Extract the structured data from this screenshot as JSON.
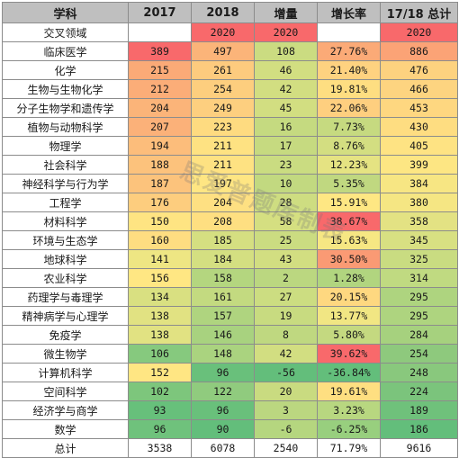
{
  "headers": [
    "学科",
    "2017",
    "2018",
    "增量",
    "增长率",
    "17/18 总计"
  ],
  "rows": [
    {
      "name": "交叉领域",
      "v2017": "",
      "v2018": "2020",
      "inc": "2020",
      "rate": "",
      "total": "2020"
    },
    {
      "name": "临床医学",
      "v2017": "389",
      "v2018": "497",
      "inc": "108",
      "rate": "27.76%",
      "total": "886"
    },
    {
      "name": "化学",
      "v2017": "215",
      "v2018": "261",
      "inc": "46",
      "rate": "21.40%",
      "total": "476"
    },
    {
      "name": "生物与生物化学",
      "v2017": "212",
      "v2018": "254",
      "inc": "42",
      "rate": "19.81%",
      "total": "466"
    },
    {
      "name": "分子生物学和遗传学",
      "v2017": "204",
      "v2018": "249",
      "inc": "45",
      "rate": "22.06%",
      "total": "453"
    },
    {
      "name": "植物与动物科学",
      "v2017": "207",
      "v2018": "223",
      "inc": "16",
      "rate": "7.73%",
      "total": "430"
    },
    {
      "name": "物理学",
      "v2017": "194",
      "v2018": "211",
      "inc": "17",
      "rate": "8.76%",
      "total": "405"
    },
    {
      "name": "社会科学",
      "v2017": "188",
      "v2018": "211",
      "inc": "23",
      "rate": "12.23%",
      "total": "399"
    },
    {
      "name": "神经科学与行为学",
      "v2017": "187",
      "v2018": "197",
      "inc": "10",
      "rate": "5.35%",
      "total": "384"
    },
    {
      "name": "工程学",
      "v2017": "176",
      "v2018": "204",
      "inc": "28",
      "rate": "15.91%",
      "total": "380"
    },
    {
      "name": "材料科学",
      "v2017": "150",
      "v2018": "208",
      "inc": "58",
      "rate": "38.67%",
      "total": "358"
    },
    {
      "name": "环境与生态学",
      "v2017": "160",
      "v2018": "185",
      "inc": "25",
      "rate": "15.63%",
      "total": "345"
    },
    {
      "name": "地球科学",
      "v2017": "141",
      "v2018": "184",
      "inc": "43",
      "rate": "30.50%",
      "total": "325"
    },
    {
      "name": "农业科学",
      "v2017": "156",
      "v2018": "158",
      "inc": "2",
      "rate": "1.28%",
      "total": "314"
    },
    {
      "name": "药理学与毒理学",
      "v2017": "134",
      "v2018": "161",
      "inc": "27",
      "rate": "20.15%",
      "total": "295"
    },
    {
      "name": "精神病学与心理学",
      "v2017": "138",
      "v2018": "157",
      "inc": "19",
      "rate": "13.77%",
      "total": "295"
    },
    {
      "name": "免疫学",
      "v2017": "138",
      "v2018": "146",
      "inc": "8",
      "rate": "5.80%",
      "total": "284"
    },
    {
      "name": "微生物学",
      "v2017": "106",
      "v2018": "148",
      "inc": "42",
      "rate": "39.62%",
      "total": "254"
    },
    {
      "name": "计算机科学",
      "v2017": "152",
      "v2018": "96",
      "inc": "-56",
      "rate": "-36.84%",
      "total": "248"
    },
    {
      "name": "空间科学",
      "v2017": "102",
      "v2018": "122",
      "inc": "20",
      "rate": "19.61%",
      "total": "224"
    },
    {
      "name": "经济学与商学",
      "v2017": "93",
      "v2018": "96",
      "inc": "3",
      "rate": "3.23%",
      "total": "189"
    },
    {
      "name": "数学",
      "v2017": "96",
      "v2018": "90",
      "inc": "-6",
      "rate": "-6.25%",
      "total": "186"
    },
    {
      "name": "总计",
      "v2017": "3538",
      "v2018": "6078",
      "inc": "2540",
      "rate": "71.79%",
      "total": "9616"
    }
  ],
  "colors": {
    "name": [
      "#ffffff",
      "#ffffff",
      "#ffffff",
      "#ffffff",
      "#ffffff",
      "#ffffff",
      "#ffffff",
      "#ffffff",
      "#ffffff",
      "#ffffff",
      "#ffffff",
      "#ffffff",
      "#ffffff",
      "#ffffff",
      "#ffffff",
      "#ffffff",
      "#ffffff",
      "#ffffff",
      "#ffffff",
      "#ffffff",
      "#ffffff",
      "#ffffff",
      "#ffffff"
    ],
    "v2017": [
      "#ffffff",
      "#f8696b",
      "#fbaa77",
      "#fbad78",
      "#fbb479",
      "#fbb179",
      "#fcbd7b",
      "#fcc27c",
      "#fcc37c",
      "#fdcd7e",
      "#fee482",
      "#fedd81",
      "#eee683",
      "#ffe783",
      "#d9e081",
      "#e1e282",
      "#e1e282",
      "#86c97e",
      "#ffe683",
      "#7dc67c",
      "#67c07b",
      "#6fc27c",
      "#ffffff"
    ],
    "v2018": [
      "#f8696b",
      "#fbb479",
      "#fdcb7e",
      "#fdce7e",
      "#fdcf7f",
      "#fedb80",
      "#fee282",
      "#fee282",
      "#ffe683",
      "#fee082",
      "#fedf81",
      "#d5df81",
      "#d4df81",
      "#b4d67f",
      "#c3da80",
      "#afd47f",
      "#a8d27f",
      "#aad37f",
      "#69c07b",
      "#90cb7e",
      "#69c07b",
      "#63be7b",
      "#ffffff"
    ],
    "inc": [
      "#f8696b",
      "#cbdc81",
      "#d2de81",
      "#d2de81",
      "#d2de81",
      "#c5da80",
      "#c6da80",
      "#cadc81",
      "#c2d980",
      "#cedd81",
      "#d5df81",
      "#cbdc81",
      "#d2de81",
      "#bbd780",
      "#ccdd81",
      "#c8db80",
      "#bfd880",
      "#d2de81",
      "#63be7b",
      "#c9db80",
      "#bbd780",
      "#b5d67f",
      "#ffffff"
    ],
    "rate": [
      "#ffffff",
      "#fbaa77",
      "#fed280",
      "#fede81",
      "#fecf7f",
      "#c6da80",
      "#d3de81",
      "#e5e382",
      "#c0d880",
      "#fee783",
      "#f8696b",
      "#f6e783",
      "#fa9a74",
      "#b1d57f",
      "#fed880",
      "#f1e683",
      "#c4d980",
      "#f8696b",
      "#63be7b",
      "#fedf81",
      "#b8d780",
      "#98cf7e",
      "#ffffff"
    ],
    "total": [
      "#f8696b",
      "#fba376",
      "#fdd27f",
      "#fdd480",
      "#fed780",
      "#fedd81",
      "#fee383",
      "#fde683",
      "#f7e683",
      "#f5e683",
      "#e3e283",
      "#d8e082",
      "#c9dc81",
      "#c0da81",
      "#aed47f",
      "#aed47f",
      "#a6d17e",
      "#8ec97d",
      "#89c87d",
      "#7bc47c",
      "#6fc17b",
      "#63be7b",
      "#ffffff"
    ]
  },
  "watermark": "思爱普题库制表"
}
